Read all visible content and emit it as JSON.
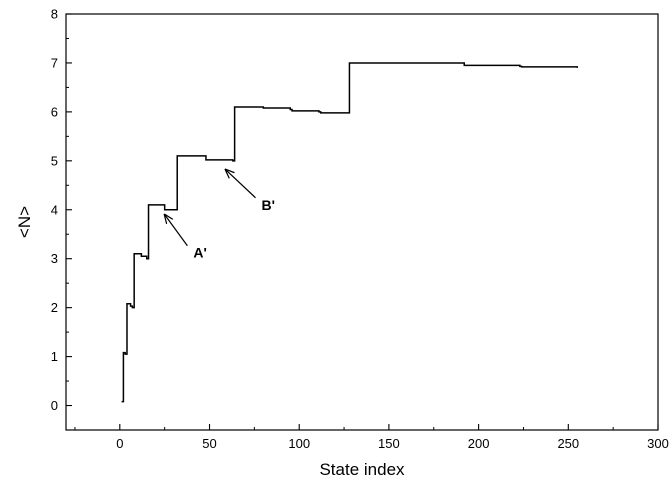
{
  "chart_data": {
    "type": "line",
    "title": "",
    "xlabel": "State index",
    "ylabel": "<N>",
    "xlim": [
      -30,
      300
    ],
    "ylim": [
      -0.5,
      8
    ],
    "xticks": [
      "0",
      "50",
      "100",
      "150",
      "200",
      "250",
      "300"
    ],
    "yticks": [
      "0",
      "1",
      "2",
      "3",
      "4",
      "5",
      "6",
      "7",
      "8"
    ],
    "grid": false,
    "legend": "none",
    "line_color": "#000000",
    "series": [
      {
        "step": true,
        "x": [
          1,
          2,
          3,
          4,
          6,
          7,
          8,
          12,
          15,
          16,
          24,
          25,
          31,
          32,
          47,
          48,
          63,
          64,
          80,
          95,
          96,
          111,
          112,
          127,
          128,
          160,
          191,
          192,
          223,
          224,
          255
        ],
        "y": [
          0.08,
          1.08,
          1.05,
          2.08,
          2.03,
          2.0,
          3.1,
          3.05,
          3.0,
          4.1,
          4.1,
          4.0,
          4.0,
          5.1,
          5.1,
          5.02,
          5.0,
          6.1,
          6.08,
          6.05,
          6.02,
          6.0,
          5.98,
          5.98,
          7.0,
          7.0,
          7.0,
          6.95,
          6.93,
          6.92,
          6.9
        ]
      }
    ],
    "annotations": [
      {
        "text": "A'",
        "x": 41,
        "y": 3.02,
        "arrow_to": [
          25,
          3.9
        ]
      },
      {
        "text": "B'",
        "x": 79,
        "y": 4.0,
        "arrow_to": [
          59,
          4.82
        ]
      }
    ]
  }
}
